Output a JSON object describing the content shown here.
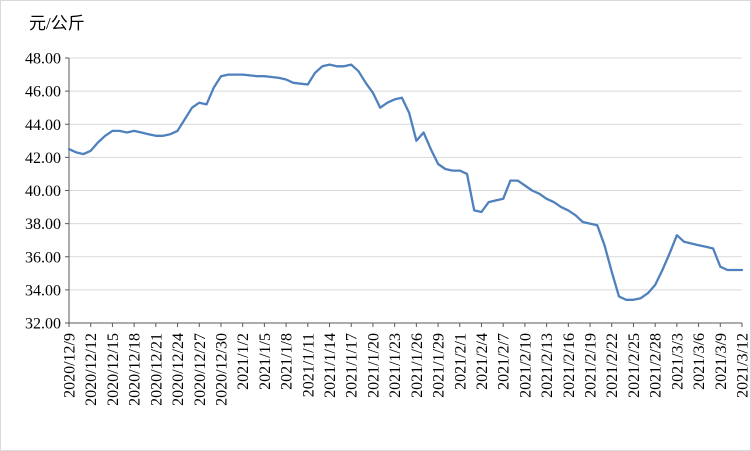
{
  "chart_data": {
    "type": "line",
    "title": "",
    "unit_label": "元/公斤",
    "legend": "none",
    "grid": "horizontal",
    "ylim": [
      32,
      48
    ],
    "y_tick_step": 2,
    "y_tick_labels": [
      "48.00",
      "46.00",
      "44.00",
      "42.00",
      "40.00",
      "38.00",
      "36.00",
      "34.00",
      "32.00"
    ],
    "x_tick_labels": [
      "2020/12/9",
      "2020/12/12",
      "2020/12/15",
      "2020/12/18",
      "2020/12/21",
      "2020/12/24",
      "2020/12/27",
      "2020/12/30",
      "2021/1/2",
      "2021/1/5",
      "2021/1/8",
      "2021/1/11",
      "2021/1/14",
      "2021/1/17",
      "2021/1/20",
      "2021/1/23",
      "2021/1/26",
      "2021/1/29",
      "2021/2/1",
      "2021/2/4",
      "2021/2/7",
      "2021/2/10",
      "2021/2/13",
      "2021/2/16",
      "2021/2/19",
      "2021/2/22",
      "2021/2/25",
      "2021/2/28",
      "2021/3/3",
      "2021/3/6",
      "2021/3/9",
      "2021/3/12"
    ],
    "x_tick_every": 3,
    "x": [
      "2020/12/9",
      "2020/12/10",
      "2020/12/11",
      "2020/12/12",
      "2020/12/13",
      "2020/12/14",
      "2020/12/15",
      "2020/12/16",
      "2020/12/17",
      "2020/12/18",
      "2020/12/19",
      "2020/12/20",
      "2020/12/21",
      "2020/12/22",
      "2020/12/23",
      "2020/12/24",
      "2020/12/25",
      "2020/12/26",
      "2020/12/27",
      "2020/12/28",
      "2020/12/29",
      "2020/12/30",
      "2020/12/31",
      "2021/1/1",
      "2021/1/2",
      "2021/1/3",
      "2021/1/4",
      "2021/1/5",
      "2021/1/6",
      "2021/1/7",
      "2021/1/8",
      "2021/1/9",
      "2021/1/10",
      "2021/1/11",
      "2021/1/12",
      "2021/1/13",
      "2021/1/14",
      "2021/1/15",
      "2021/1/16",
      "2021/1/17",
      "2021/1/18",
      "2021/1/19",
      "2021/1/20",
      "2021/1/21",
      "2021/1/22",
      "2021/1/23",
      "2021/1/24",
      "2021/1/25",
      "2021/1/26",
      "2021/1/27",
      "2021/1/28",
      "2021/1/29",
      "2021/1/30",
      "2021/1/31",
      "2021/2/1",
      "2021/2/2",
      "2021/2/3",
      "2021/2/4",
      "2021/2/5",
      "2021/2/6",
      "2021/2/7",
      "2021/2/8",
      "2021/2/9",
      "2021/2/10",
      "2021/2/11",
      "2021/2/12",
      "2021/2/13",
      "2021/2/14",
      "2021/2/15",
      "2021/2/16",
      "2021/2/17",
      "2021/2/18",
      "2021/2/19",
      "2021/2/20",
      "2021/2/21",
      "2021/2/22",
      "2021/2/23",
      "2021/2/24",
      "2021/2/25",
      "2021/2/26",
      "2021/2/27",
      "2021/2/28",
      "2021/3/1",
      "2021/3/2",
      "2021/3/3",
      "2021/3/4",
      "2021/3/5",
      "2021/3/6",
      "2021/3/7",
      "2021/3/8",
      "2021/3/9",
      "2021/3/10",
      "2021/3/11",
      "2021/3/12"
    ],
    "values": [
      42.5,
      42.3,
      42.2,
      42.4,
      42.9,
      43.3,
      43.6,
      43.6,
      43.5,
      43.6,
      43.5,
      43.4,
      43.3,
      43.3,
      43.4,
      43.6,
      44.3,
      45.0,
      45.3,
      45.2,
      46.2,
      46.9,
      47.0,
      47.0,
      47.0,
      46.95,
      46.9,
      46.9,
      46.85,
      46.8,
      46.7,
      46.5,
      46.45,
      46.4,
      47.1,
      47.5,
      47.6,
      47.5,
      47.5,
      47.6,
      47.2,
      46.5,
      45.9,
      45.0,
      45.3,
      45.5,
      45.6,
      44.7,
      43.0,
      43.5,
      42.5,
      41.6,
      41.3,
      41.2,
      41.2,
      41.0,
      38.8,
      38.7,
      39.3,
      39.4,
      39.5,
      40.6,
      40.6,
      40.3,
      40.0,
      39.8,
      39.5,
      39.3,
      39.0,
      38.8,
      38.5,
      38.1,
      38.0,
      37.9,
      36.7,
      35.1,
      33.6,
      33.4,
      33.4,
      33.5,
      33.8,
      34.3,
      35.2,
      36.2,
      37.3,
      36.9,
      36.8,
      36.7,
      36.6,
      36.5,
      35.4,
      35.2,
      35.2,
      35.2
    ],
    "line_color": "#4F81BD",
    "grid_color": "#D9D9D9",
    "axis_color": "#595959",
    "text_color": "#000000",
    "background_color": "#FFFFFF"
  }
}
